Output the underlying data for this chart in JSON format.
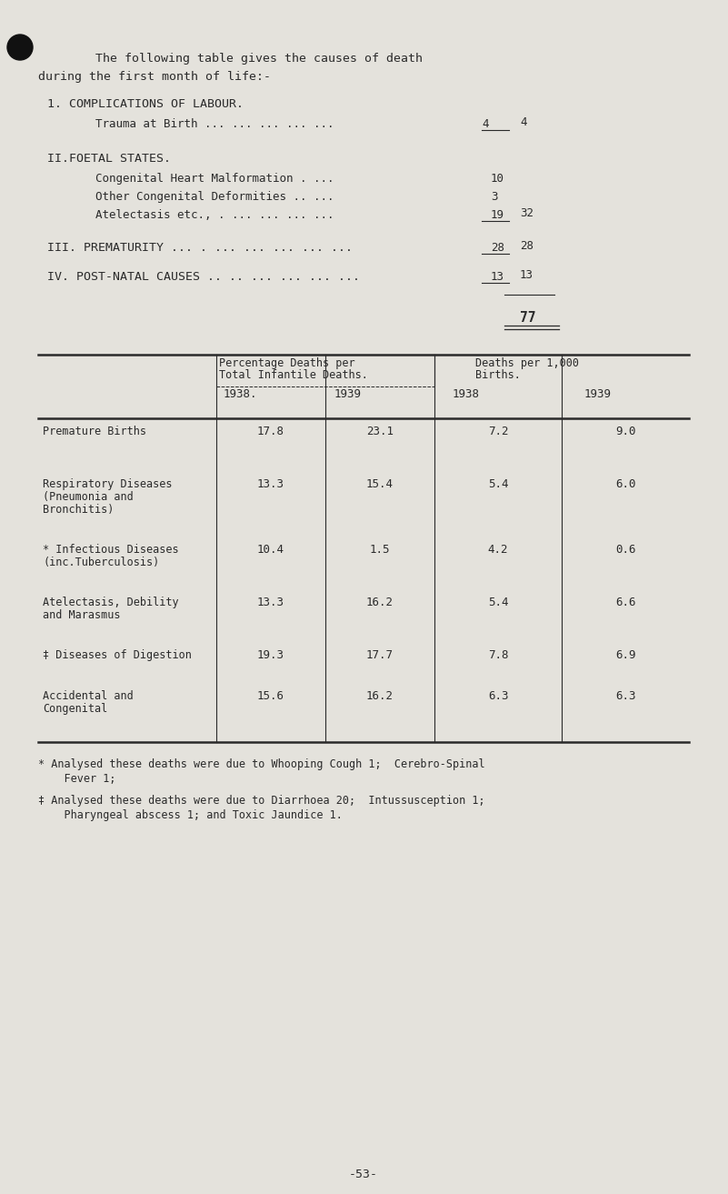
{
  "bg_color": "#e4e2dc",
  "text_color": "#2a2a2a",
  "intro_line1": "The following table gives the causes of death",
  "intro_line2": "during the first month of life:-",
  "s1_header": "1. COMPLICATIONS OF LABOUR.",
  "s1_item1": "Trauma at Birth ... ... ... ... ...",
  "s1_v1": "4",
  "s1_total": "4",
  "s2_header": "II.FOETAL STATES.",
  "s2_item1": "Congenital Heart Malformation . ...",
  "s2_v1": "10",
  "s2_item2": "Other Congenital Deformities .. ...",
  "s2_v2": "3",
  "s2_item3": "Atelectasis etc., . ... ... ... ...",
  "s2_v3": "19",
  "s2_total": "32",
  "s3_header": "III. PREMATURITY ... . ... ... ... ... ...",
  "s3_v": "28",
  "s3_total": "28",
  "s4_header": "IV. POST-NATAL CAUSES .. .. ... ... ... ...",
  "s4_v": "13",
  "s4_total": "13",
  "grand_total": "77",
  "yr_headers": [
    "1938.",
    "1939",
    "1938",
    "1939"
  ],
  "table_rows": [
    {
      "lines": [
        "Premature Births"
      ],
      "vals": [
        "17.8",
        "23.1",
        "7.2",
        "9.0"
      ]
    },
    {
      "lines": [
        "Respiratory Diseases",
        "(Pneumonia and",
        "Bronchitis)"
      ],
      "vals": [
        "13.3",
        "15.4",
        "5.4",
        "6.0"
      ]
    },
    {
      "lines": [
        "* Infectious Diseases",
        "(inc.Tuberculosis)"
      ],
      "vals": [
        "10.4",
        "1.5",
        "4.2",
        "0.6"
      ]
    },
    {
      "lines": [
        "Atelectasis, Debility",
        "and Marasmus"
      ],
      "vals": [
        "13.3",
        "16.2",
        "5.4",
        "6.6"
      ]
    },
    {
      "lines": [
        "‡ Diseases of Digestion"
      ],
      "vals": [
        "19.3",
        "17.7",
        "7.8",
        "6.9"
      ]
    },
    {
      "lines": [
        "Accidental and",
        "Congenital"
      ],
      "vals": [
        "15.6",
        "16.2",
        "6.3",
        "6.3"
      ]
    }
  ],
  "fn1a": "* Analysed these deaths were due to Whooping Cough 1;  Cerebro-Spinal",
  "fn1b": "    Fever 1;",
  "fn2a": "‡ Analysed these deaths were due to Diarrhoea 20;  Intussusception 1;",
  "fn2b": "    Pharyngeal abscess 1; and Toxic Jaundice 1.",
  "page_num": "-53-"
}
